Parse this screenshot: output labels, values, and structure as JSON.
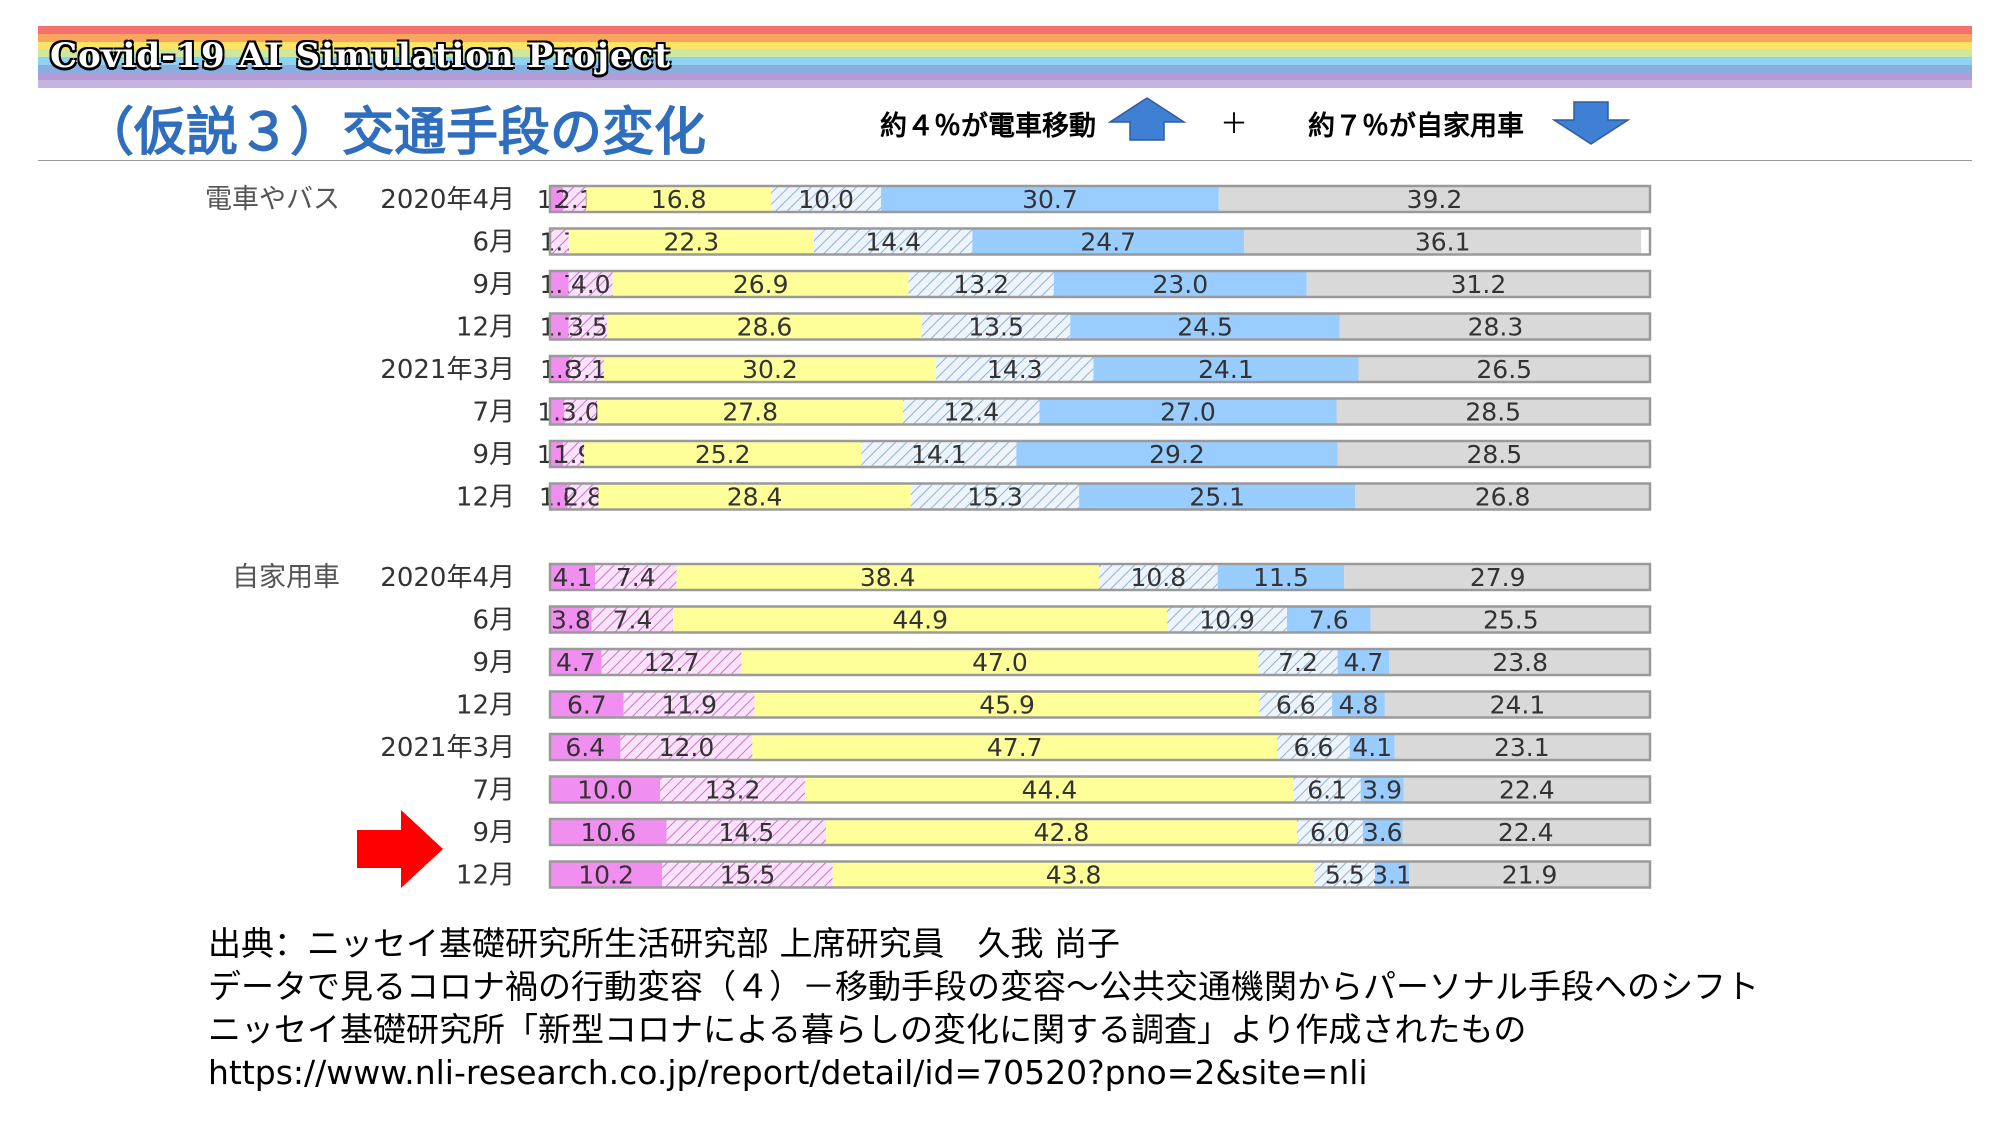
{
  "header": {
    "banner_title": "Covid-19 AI Simulation Project",
    "slide_title": "（仮説３）交通手段の変化",
    "note_left": "約４％が電車移動",
    "plus": "＋",
    "note_right": "約７％が自家用車",
    "rainbow_colors": [
      "#f4716e",
      "#f8a55d",
      "#fde466",
      "#cfe8a0",
      "#8fd3f2",
      "#8aaee0",
      "#b49bd6",
      "#c7b3e0"
    ]
  },
  "arrows": {
    "up_icon": "arrow-up-icon",
    "down_icon": "arrow-down-icon",
    "pointer_icon": "red-arrow-icon",
    "blue": "#3f7fd4",
    "red": "#ff0000"
  },
  "chart_data": {
    "type": "bar",
    "orientation": "horizontal-stacked-100",
    "segment_colors": [
      "#f08ff0",
      "#f5c6f5",
      "#ffff99",
      "#dde9f5",
      "#99ccff",
      "#d9d9d9"
    ],
    "segment_patterns": [
      "solid",
      "hatch-pink",
      "solid",
      "hatch-blue",
      "solid",
      "solid"
    ],
    "groups": [
      {
        "label": "電車やバス",
        "rows": [
          {
            "period": "2020年4月",
            "values": [
              1.2,
              2.1,
              16.8,
              10.0,
              30.7,
              39.2
            ]
          },
          {
            "period": "6月",
            "values": [
              0.0,
              1.7,
              22.3,
              14.4,
              24.7,
              36.1
            ]
          },
          {
            "period": "9月",
            "values": [
              1.7,
              4.0,
              26.9,
              13.2,
              23.0,
              31.2
            ]
          },
          {
            "period": "12月",
            "values": [
              1.7,
              3.5,
              28.6,
              13.5,
              24.5,
              28.3
            ]
          },
          {
            "period": "2021年3月",
            "values": [
              1.8,
              3.1,
              30.2,
              14.3,
              24.1,
              26.5
            ]
          },
          {
            "period": "7月",
            "values": [
              1.3,
              3.0,
              27.8,
              12.4,
              27.0,
              28.5
            ]
          },
          {
            "period": "9月",
            "values": [
              1.2,
              1.9,
              25.2,
              14.1,
              29.2,
              28.5
            ]
          },
          {
            "period": "12月",
            "values": [
              1.6,
              2.8,
              28.4,
              15.3,
              25.1,
              26.8
            ]
          }
        ]
      },
      {
        "label": "自家用車",
        "rows": [
          {
            "period": "2020年4月",
            "values": [
              4.1,
              7.4,
              38.4,
              10.8,
              11.5,
              27.9
            ]
          },
          {
            "period": "6月",
            "values": [
              3.8,
              7.4,
              44.9,
              10.9,
              7.6,
              25.5
            ]
          },
          {
            "period": "9月",
            "values": [
              4.7,
              12.7,
              47.0,
              7.2,
              4.7,
              23.8
            ]
          },
          {
            "period": "12月",
            "values": [
              6.7,
              11.9,
              45.9,
              6.6,
              4.8,
              24.1
            ]
          },
          {
            "period": "2021年3月",
            "values": [
              6.4,
              12.0,
              47.7,
              6.6,
              4.1,
              23.1
            ]
          },
          {
            "period": "7月",
            "values": [
              10.0,
              13.2,
              44.4,
              6.1,
              3.9,
              22.4
            ]
          },
          {
            "period": "9月",
            "values": [
              10.6,
              14.5,
              42.8,
              6.0,
              3.6,
              22.4
            ]
          },
          {
            "period": "12月",
            "values": [
              10.2,
              15.5,
              43.8,
              5.5,
              3.1,
              21.9
            ]
          }
        ]
      }
    ]
  },
  "source": {
    "line1": "出典：ニッセイ基礎研究所生活研究部 上席研究員　久我 尚子",
    "line2": "データで見るコロナ禍の行動変容（４）－移動手段の変容～公共交通機関からパーソナル手段へのシフト",
    "line3": "ニッセイ基礎研究所「新型コロナによる暮らしの変化に関する調査」より作成されたもの",
    "line4": "https://www.nli-research.co.jp/report/detail/id=70520?pno=2&site=nli"
  }
}
